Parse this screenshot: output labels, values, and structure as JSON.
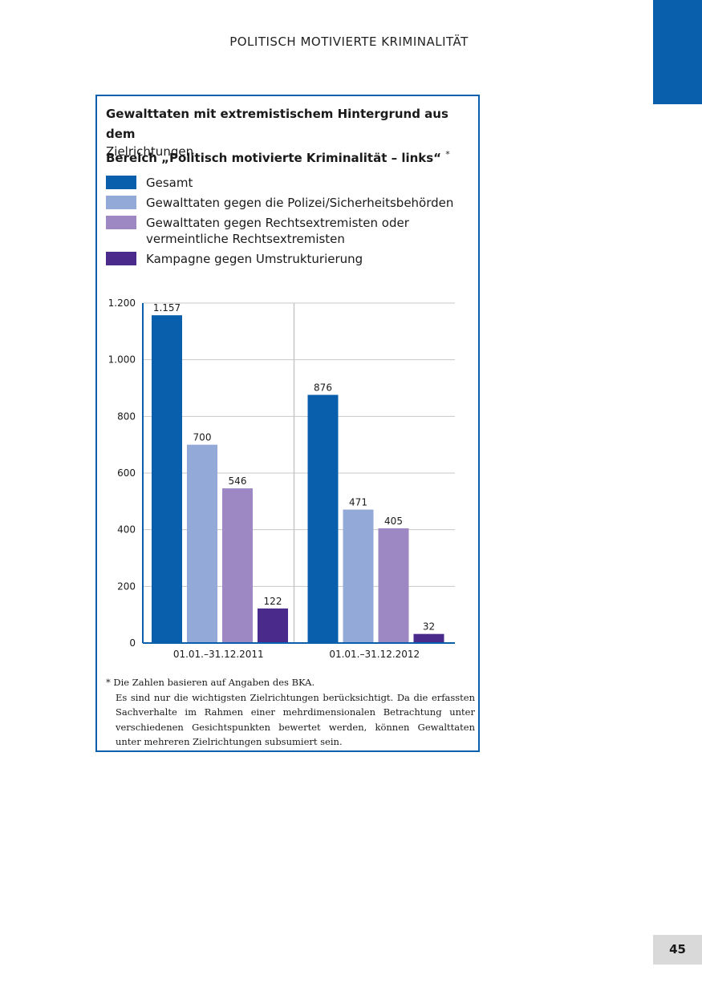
{
  "header": {
    "running_title": "POLITISCH MOTIVIERTE KRIMINALITÄT"
  },
  "page_number": "45",
  "colors": {
    "accent": "#0a5fad",
    "page_tab": "#0a5fad",
    "page_number_bg": "#d9d9d9"
  },
  "chart_data": {
    "type": "bar",
    "title_line1": "Gewalttaten mit extremistischem Hintergrund aus dem",
    "title_line2": "Bereich „Politisch motivierte Kriminalität – links“",
    "title_marker": "*",
    "subtitle": "Zielrichtungen",
    "categories": [
      "01.01.–31.12.2011",
      "01.01.–31.12.2012"
    ],
    "series": [
      {
        "name": "Gesamt",
        "color": "#0a5fad",
        "values": [
          1157,
          876
        ],
        "labels": [
          "1.157",
          "876"
        ]
      },
      {
        "name": "Gewalttaten gegen die Polizei/Sicherheitsbehörden",
        "color": "#93a9d8",
        "values": [
          700,
          471
        ],
        "labels": [
          "700",
          "471"
        ]
      },
      {
        "name_line1": "Gewalttaten gegen Rechtsextremisten oder",
        "name_line2": "vermeintliche Rechtsextremisten",
        "color": "#9e88c3",
        "values": [
          546,
          405
        ],
        "labels": [
          "546",
          "405"
        ]
      },
      {
        "name": "Kampagne gegen Umstrukturierung",
        "color": "#4a2a8a",
        "values": [
          122,
          32
        ],
        "labels": [
          "122",
          "32"
        ]
      }
    ],
    "ylim": [
      0,
      1200
    ],
    "yticks": [
      0,
      200,
      400,
      600,
      800,
      1000,
      1200
    ],
    "ytick_labels": [
      "0",
      "200",
      "400",
      "600",
      "800",
      "1.000",
      "1.200"
    ],
    "grid": true,
    "legend_position": "top"
  },
  "footnote": {
    "marker": "*",
    "line1": "Die Zahlen basieren auf Angaben des BKA.",
    "body": "Es sind nur die wichtigsten Zielrichtungen berücksichtigt. Da die erfassten Sachverhalte im Rahmen einer mehrdimensionalen Betrachtung unter verschiedenen Gesichtspunkten bewertet werden, können Gewalttaten unter mehreren Zielrichtungen subsumiert sein."
  }
}
